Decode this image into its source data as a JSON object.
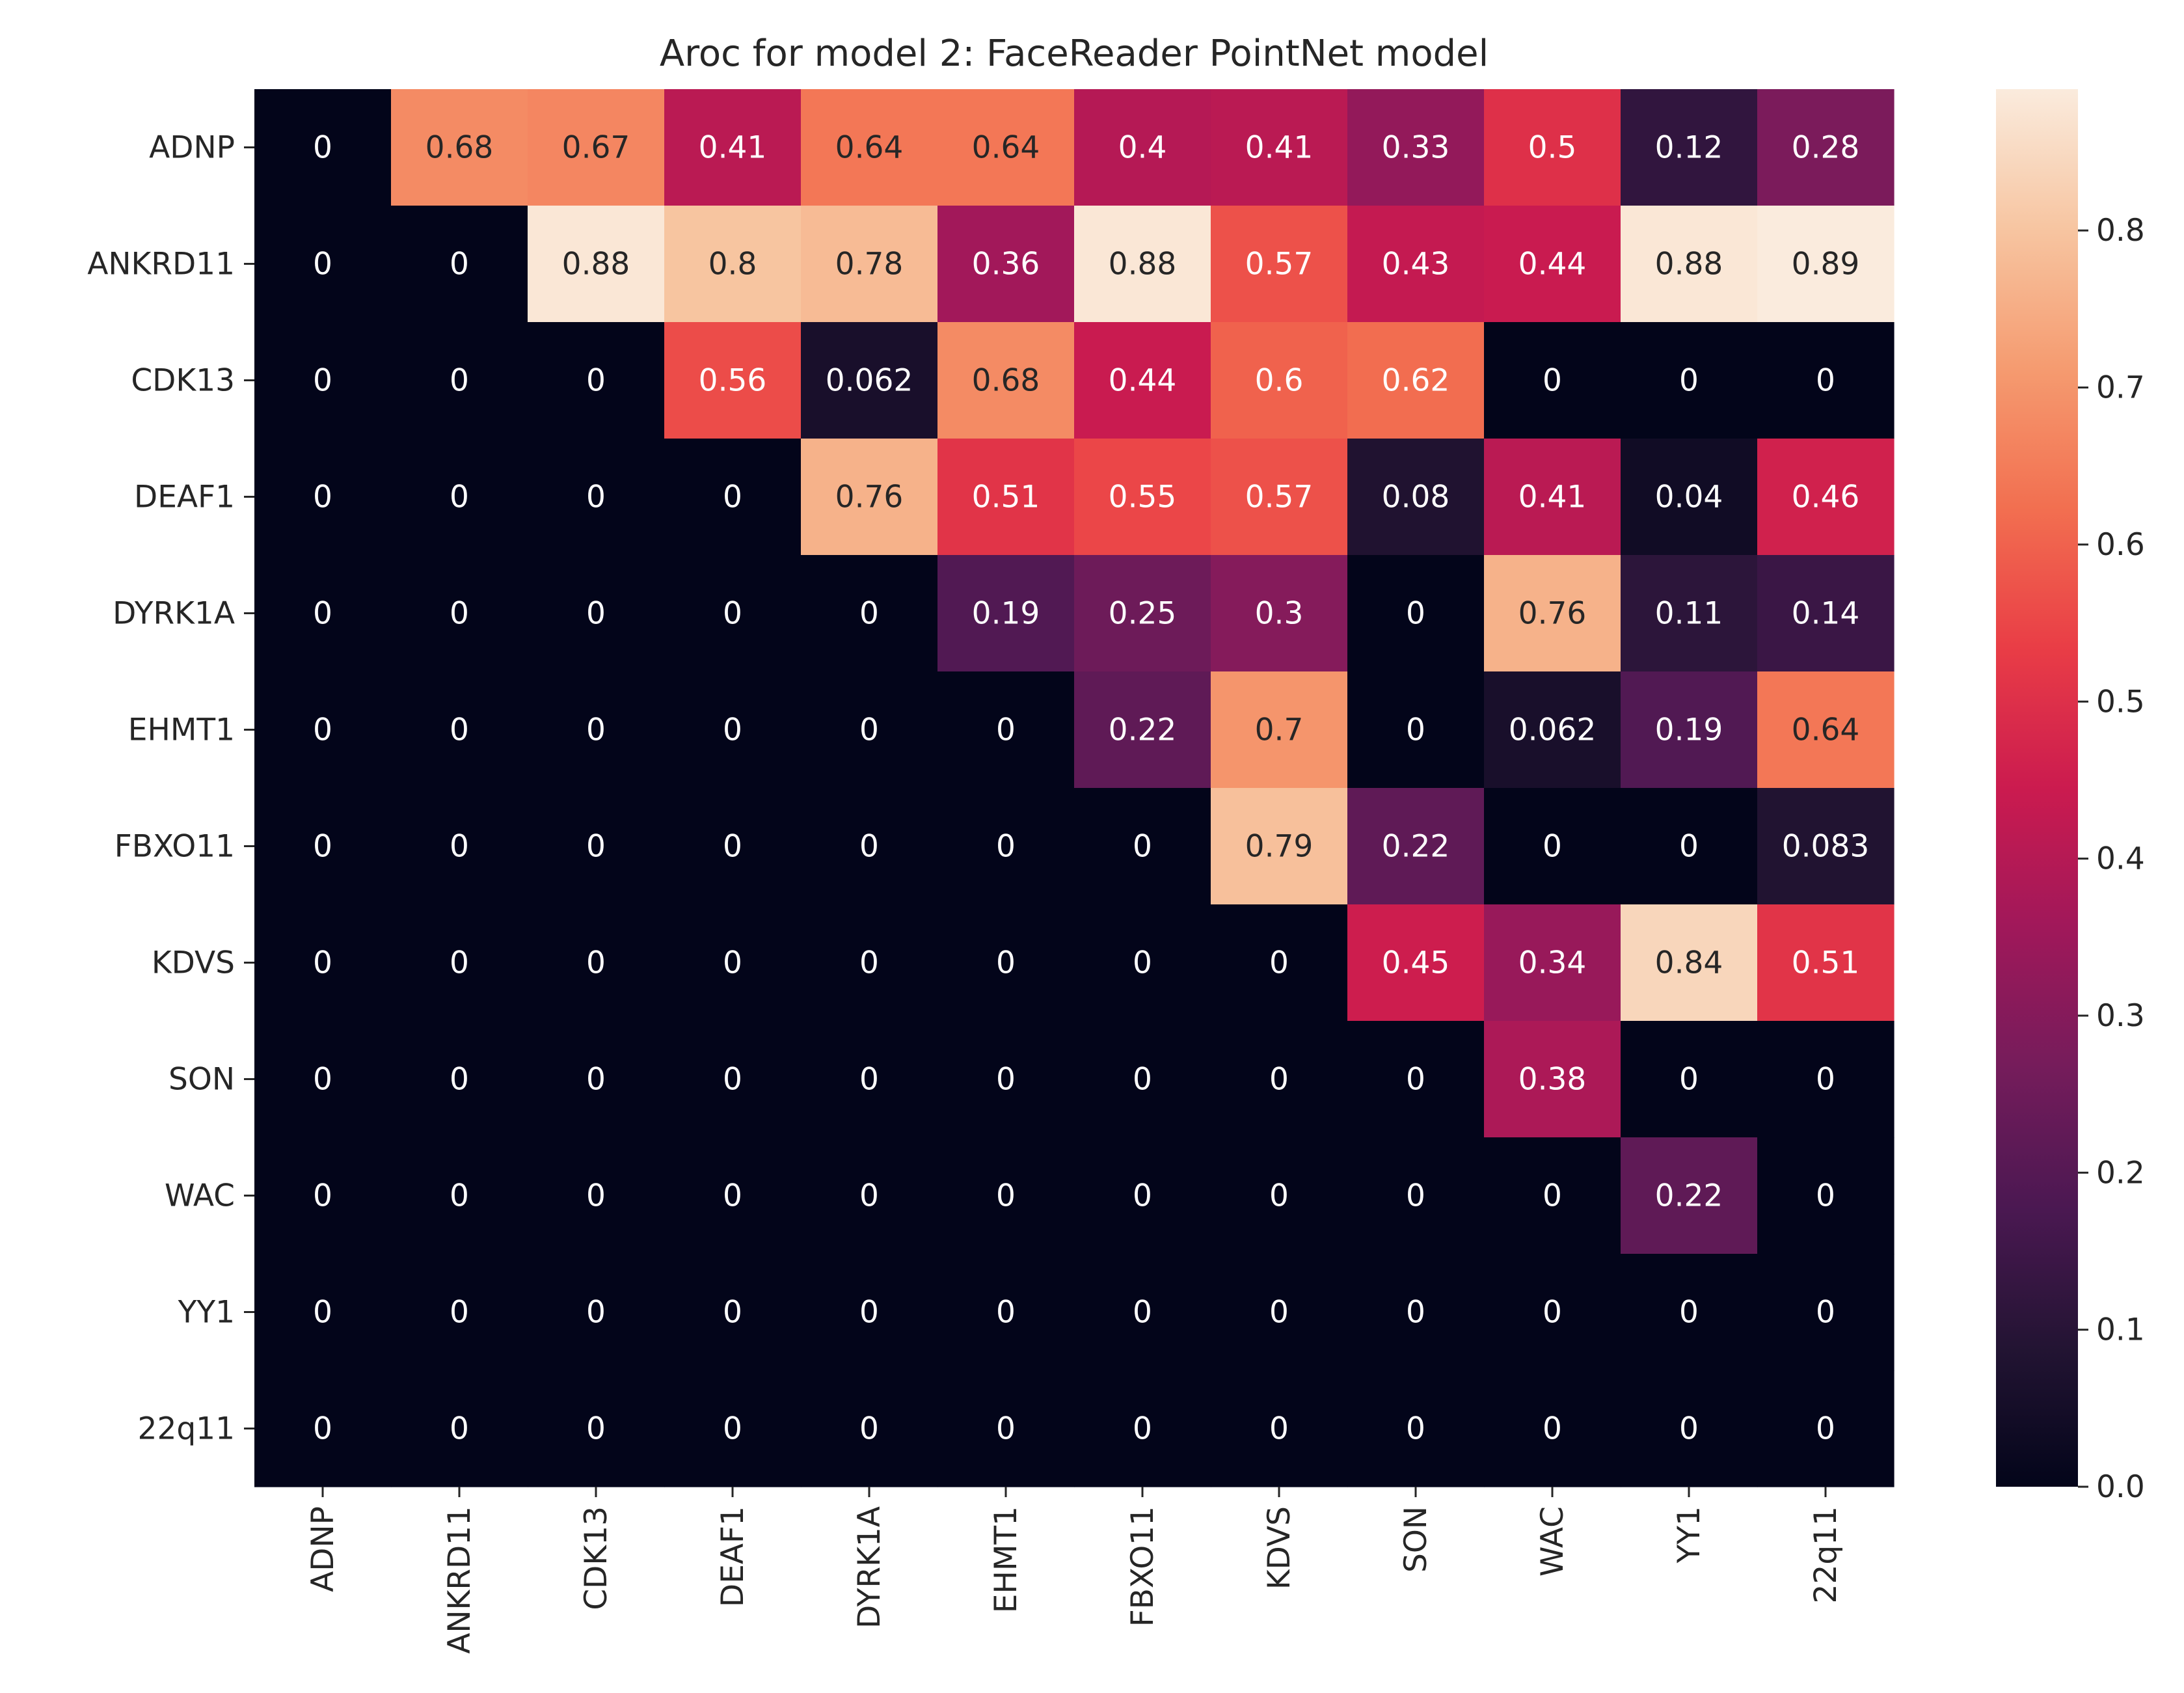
{
  "chart_data": {
    "type": "heatmap",
    "title": "Aroc for model 2: FaceReader PointNet model",
    "xlabel": "",
    "ylabel": "",
    "x_categories": [
      "ADNP",
      "ANKRD11",
      "CDK13",
      "DEAF1",
      "DYRK1A",
      "EHMT1",
      "FBXO11",
      "KDVS",
      "SON",
      "WAC",
      "YY1",
      "22q11"
    ],
    "y_categories": [
      "ADNP",
      "ANKRD11",
      "CDK13",
      "DEAF1",
      "DYRK1A",
      "EHMT1",
      "FBXO11",
      "KDVS",
      "SON",
      "WAC",
      "YY1",
      "22q11"
    ],
    "values": [
      [
        "0",
        "0.68",
        "0.67",
        "0.41",
        "0.64",
        "0.64",
        "0.4",
        "0.41",
        "0.33",
        "0.5",
        "0.12",
        "0.28"
      ],
      [
        "0",
        "0",
        "0.88",
        "0.8",
        "0.78",
        "0.36",
        "0.88",
        "0.57",
        "0.43",
        "0.44",
        "0.88",
        "0.89"
      ],
      [
        "0",
        "0",
        "0",
        "0.56",
        "0.062",
        "0.68",
        "0.44",
        "0.6",
        "0.62",
        "0",
        "0",
        "0"
      ],
      [
        "0",
        "0",
        "0",
        "0",
        "0.76",
        "0.51",
        "0.55",
        "0.57",
        "0.08",
        "0.41",
        "0.04",
        "0.46"
      ],
      [
        "0",
        "0",
        "0",
        "0",
        "0",
        "0.19",
        "0.25",
        "0.3",
        "0",
        "0.76",
        "0.11",
        "0.14"
      ],
      [
        "0",
        "0",
        "0",
        "0",
        "0",
        "0",
        "0.22",
        "0.7",
        "0",
        "0.062",
        "0.19",
        "0.64"
      ],
      [
        "0",
        "0",
        "0",
        "0",
        "0",
        "0",
        "0",
        "0.79",
        "0.22",
        "0",
        "0",
        "0.083"
      ],
      [
        "0",
        "0",
        "0",
        "0",
        "0",
        "0",
        "0",
        "0",
        "0.45",
        "0.34",
        "0.84",
        "0.51"
      ],
      [
        "0",
        "0",
        "0",
        "0",
        "0",
        "0",
        "0",
        "0",
        "0",
        "0.38",
        "0",
        "0"
      ],
      [
        "0",
        "0",
        "0",
        "0",
        "0",
        "0",
        "0",
        "0",
        "0",
        "0",
        "0.22",
        "0"
      ],
      [
        "0",
        "0",
        "0",
        "0",
        "0",
        "0",
        "0",
        "0",
        "0",
        "0",
        "0",
        "0"
      ],
      [
        "0",
        "0",
        "0",
        "0",
        "0",
        "0",
        "0",
        "0",
        "0",
        "0",
        "0",
        "0"
      ]
    ],
    "colorbar": {
      "range": [
        0,
        0.89
      ],
      "ticks": [
        "0.0",
        "0.1",
        "0.2",
        "0.3",
        "0.4",
        "0.5",
        "0.6",
        "0.7",
        "0.8"
      ],
      "colormap": "rocket"
    },
    "grid": false
  }
}
